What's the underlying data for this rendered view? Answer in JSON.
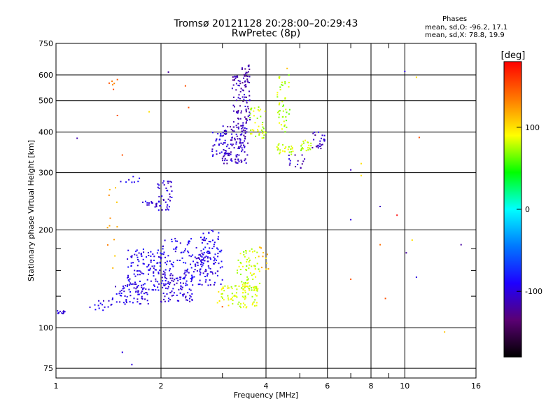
{
  "chart_data": {
    "type": "scatter",
    "title": "Tromsø 20121128 20:28:00–20:29:43",
    "subtitle": "RwPretec (8p)",
    "xlabel": "Frequency [MHz]",
    "ylabel": "Stationary phase Virtual Height [km]",
    "x_scale": "log",
    "y_scale": "log",
    "xlim": [
      1,
      16
    ],
    "ylim": [
      70,
      750
    ],
    "x_ticks": [
      "1",
      "2",
      "4",
      "6",
      "8",
      "10",
      "16"
    ],
    "y_ticks": [
      "75",
      "100",
      "200",
      "300",
      "400",
      "500",
      "600",
      "750"
    ],
    "grid": true,
    "colorbar": {
      "label": "[deg]",
      "range": [
        -180,
        180
      ],
      "ticks": [
        "100",
        "0",
        "-100"
      ],
      "colors": [
        "#000000",
        "#5a0073",
        "#1e00ff",
        "#0078ff",
        "#00ffff",
        "#00ff00",
        "#ffff00",
        "#ff7800",
        "#ff0000"
      ]
    },
    "stats": {
      "heading": "Phases",
      "line1": "mean, sd,O: -96.2, 17.1",
      "line2": "mean, sd,X:  78.8, 19.9"
    },
    "clusters": [
      {
        "f": [
          1.0,
          1.06
        ],
        "h": [
          110,
          113
        ],
        "phase": -100,
        "n": 12
      },
      {
        "f": [
          1.25,
          1.45
        ],
        "h": [
          112,
          125
        ],
        "phase": -95,
        "n": 15
      },
      {
        "f": [
          1.45,
          1.85
        ],
        "h": [
          118,
          135
        ],
        "phase": -100,
        "n": 60
      },
      {
        "f": [
          1.6,
          2.0
        ],
        "h": [
          130,
          175
        ],
        "phase": -95,
        "n": 120
      },
      {
        "f": [
          2.0,
          2.5
        ],
        "h": [
          120,
          150
        ],
        "phase": -100,
        "n": 100
      },
      {
        "f": [
          2.0,
          2.8
        ],
        "h": [
          140,
          190
        ],
        "phase": -95,
        "n": 110
      },
      {
        "f": [
          2.5,
          3.0
        ],
        "h": [
          135,
          170
        ],
        "phase": -100,
        "n": 60
      },
      {
        "f": [
          2.6,
          3.0
        ],
        "h": [
          160,
          200
        ],
        "phase": -90,
        "n": 40
      },
      {
        "f": [
          1.95,
          2.15
        ],
        "h": [
          230,
          285
        ],
        "phase": -100,
        "n": 40
      },
      {
        "f": [
          1.75,
          1.95
        ],
        "h": [
          235,
          245
        ],
        "phase": -100,
        "n": 15
      },
      {
        "f": [
          1.5,
          1.75
        ],
        "h": [
          280,
          295
        ],
        "phase": -95,
        "n": 8
      },
      {
        "f": [
          2.8,
          3.1
        ],
        "h": [
          330,
          400
        ],
        "phase": -100,
        "n": 30
      },
      {
        "f": [
          3.0,
          3.55
        ],
        "h": [
          320,
          420
        ],
        "phase": -110,
        "n": 130
      },
      {
        "f": [
          3.2,
          3.6
        ],
        "h": [
          420,
          600
        ],
        "phase": -115,
        "n": 90
      },
      {
        "f": [
          3.4,
          3.6
        ],
        "h": [
          580,
          650
        ],
        "phase": -115,
        "n": 15
      },
      {
        "f": [
          2.9,
          3.8
        ],
        "h": [
          115,
          135
        ],
        "phase": 85,
        "n": 90
      },
      {
        "f": [
          3.3,
          3.85
        ],
        "h": [
          130,
          175
        ],
        "phase": 80,
        "n": 70
      },
      {
        "f": [
          3.6,
          4.0
        ],
        "h": [
          380,
          480
        ],
        "phase": 80,
        "n": 40
      },
      {
        "f": [
          4.3,
          4.7
        ],
        "h": [
          400,
          600
        ],
        "phase": 75,
        "n": 45
      },
      {
        "f": [
          4.3,
          4.8
        ],
        "h": [
          340,
          370
        ],
        "phase": 80,
        "n": 25
      },
      {
        "f": [
          5.0,
          5.4
        ],
        "h": [
          350,
          380
        ],
        "phase": 75,
        "n": 20
      },
      {
        "f": [
          4.6,
          5.2
        ],
        "h": [
          310,
          340
        ],
        "phase": -110,
        "n": 15
      },
      {
        "f": [
          5.4,
          5.9
        ],
        "h": [
          350,
          400
        ],
        "phase": -110,
        "n": 25
      },
      {
        "f": [
          3.8,
          4.1
        ],
        "h": [
          150,
          180
        ],
        "phase": 110,
        "n": 12
      },
      {
        "f": [
          1.4,
          1.5
        ],
        "h": [
          540,
          590
        ],
        "phase": 140,
        "n": 6
      },
      {
        "f": [
          1.4,
          1.5
        ],
        "h": [
          150,
          270
        ],
        "phase": 120,
        "n": 12
      }
    ],
    "points": [
      {
        "f": 1.15,
        "h": 383,
        "phase": -115
      },
      {
        "f": 1.5,
        "h": 450,
        "phase": 150
      },
      {
        "f": 1.85,
        "h": 462,
        "phase": 100
      },
      {
        "f": 2.1,
        "h": 612,
        "phase": -120
      },
      {
        "f": 2.35,
        "h": 555,
        "phase": 150
      },
      {
        "f": 2.4,
        "h": 476,
        "phase": 150
      },
      {
        "f": 1.55,
        "h": 340,
        "phase": 150
      },
      {
        "f": 1.65,
        "h": 77,
        "phase": -100
      },
      {
        "f": 1.55,
        "h": 84,
        "phase": -100
      },
      {
        "f": 3.0,
        "h": 116,
        "phase": 150
      },
      {
        "f": 4.6,
        "h": 628,
        "phase": 110
      },
      {
        "f": 7.0,
        "h": 306,
        "phase": -110
      },
      {
        "f": 7.5,
        "h": 320,
        "phase": 100
      },
      {
        "f": 7.5,
        "h": 294,
        "phase": 100
      },
      {
        "f": 8.5,
        "h": 236,
        "phase": -110
      },
      {
        "f": 9.5,
        "h": 222,
        "phase": 180
      },
      {
        "f": 7.0,
        "h": 215,
        "phase": -100
      },
      {
        "f": 8.5,
        "h": 180,
        "phase": 140
      },
      {
        "f": 10.1,
        "h": 170,
        "phase": -120
      },
      {
        "f": 10.5,
        "h": 186,
        "phase": 100
      },
      {
        "f": 10.8,
        "h": 590,
        "phase": 100
      },
      {
        "f": 10.0,
        "h": 615,
        "phase": -100
      },
      {
        "f": 11.0,
        "h": 385,
        "phase": 150
      },
      {
        "f": 10.8,
        "h": 143,
        "phase": -100
      },
      {
        "f": 7.0,
        "h": 141,
        "phase": 150
      },
      {
        "f": 8.8,
        "h": 123,
        "phase": 150
      },
      {
        "f": 13.0,
        "h": 97,
        "phase": 110
      },
      {
        "f": 14.5,
        "h": 180,
        "phase": -120
      }
    ]
  }
}
